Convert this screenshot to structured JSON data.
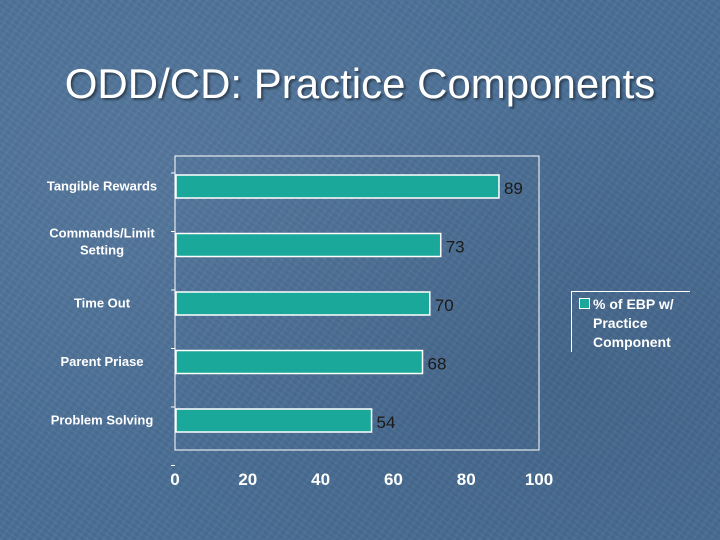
{
  "slide": {
    "title": "ODD/CD: Practice Components"
  },
  "colors": {
    "bar": "#1aa89a",
    "axis": "#ffffff",
    "background": "#4a6f96"
  },
  "chart_data": {
    "type": "bar",
    "orientation": "horizontal",
    "categories": [
      "Tangible Rewards",
      "Commands/Limit Setting",
      "Time Out",
      "Parent Priase",
      "Problem Solving"
    ],
    "category_lines": [
      [
        "Tangible Rewards"
      ],
      [
        "Commands/Limit",
        "Setting"
      ],
      [
        "Time Out"
      ],
      [
        "Parent Priase"
      ],
      [
        "Problem Solving"
      ]
    ],
    "series": [
      {
        "name": "% of EBP w/ Practice Component",
        "values": [
          89,
          73,
          70,
          68,
          54
        ]
      }
    ],
    "xlim": [
      0,
      100
    ],
    "xticks": [
      0,
      20,
      40,
      60,
      80,
      100
    ],
    "legend_position": "right",
    "grid": false
  },
  "legend": {
    "label": "% of EBP w/ Practice Component"
  }
}
